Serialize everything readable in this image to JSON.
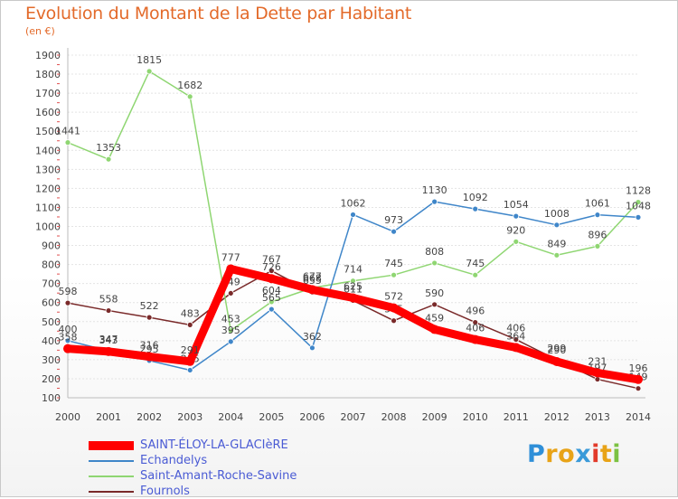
{
  "header": {
    "title": "Evolution du Montant de la Dette par Habitant",
    "subtitle": "(en €)"
  },
  "logo": {
    "letters": [
      "P",
      "r",
      "o",
      "x",
      "i",
      "t",
      "i"
    ],
    "colors": [
      "#2f8fd8",
      "#e8a317",
      "#e8a317",
      "#3a9ad9",
      "#e23a2a",
      "#e8a317",
      "#7cc242"
    ]
  },
  "chart_data": {
    "type": "line",
    "title": "Evolution du Montant de la Dette par Habitant",
    "subtitle": "(en €)",
    "xlabel": "",
    "ylabel": "",
    "x": [
      "2000",
      "2001",
      "2002",
      "2003",
      "2004",
      "2005",
      "2006",
      "2007",
      "2008",
      "2009",
      "2010",
      "2011",
      "2012",
      "2013",
      "2014"
    ],
    "ylim": [
      100,
      1900
    ],
    "yticks": [
      100,
      200,
      300,
      400,
      500,
      600,
      700,
      800,
      900,
      1000,
      1100,
      1200,
      1300,
      1400,
      1500,
      1600,
      1700,
      1800,
      1900
    ],
    "grid": "horizontal",
    "legend": "bottom-left",
    "series": [
      {
        "name": "Fournols",
        "color": "#7a2a2a",
        "values": [
          598,
          558,
          522,
          483,
          649,
          767,
          655,
          611,
          505,
          590,
          496,
          406,
          299,
          197,
          149
        ],
        "labels": [
          "598",
          "558",
          "522",
          "483",
          "649",
          "767",
          "655",
          "611",
          "505",
          "590",
          "496",
          "406",
          "299",
          "197",
          "149"
        ]
      },
      {
        "name": "Saint-Amant-Roche-Savine",
        "color": "#8fd672",
        "values": [
          1441,
          1353,
          1815,
          1682,
          453,
          604,
          677,
          714,
          745,
          808,
          745,
          920,
          849,
          896,
          1128
        ],
        "labels": [
          "1441",
          "1353",
          "1815",
          "1682",
          "453",
          "604",
          "677",
          "714",
          "745",
          "808",
          "745",
          "920",
          "849",
          "896",
          "1128"
        ]
      },
      {
        "name": "Echandelys",
        "color": "#3f86c9",
        "values": [
          400,
          347,
          295,
          245,
          395,
          565,
          362,
          1062,
          973,
          1130,
          1092,
          1054,
          1008,
          1061,
          1048
        ],
        "labels": [
          "400",
          "347",
          "295",
          "245",
          "395",
          "565",
          "362",
          "1062",
          "973",
          "1130",
          "1092",
          "1054",
          "1008",
          "1061",
          "1048"
        ]
      },
      {
        "name": "SAINT-ÉLOY-LA-GLACIèRE",
        "color": "#ff0000",
        "values": [
          358,
          343,
          316,
          291,
          777,
          726,
          668,
          625,
          572,
          459,
          406,
          364,
          290,
          231,
          196
        ],
        "labels": [
          "358",
          "343",
          "316",
          "291",
          "777",
          "726",
          "668",
          "625",
          "572",
          "459",
          "406",
          "364",
          "290",
          "231",
          "196"
        ]
      }
    ],
    "legend_entries": [
      {
        "name": "SAINT-ÉLOY-LA-GLACIèRE",
        "color": "#ff0000"
      },
      {
        "name": "Echandelys",
        "color": "#3f86c9"
      },
      {
        "name": "Saint-Amant-Roche-Savine",
        "color": "#8fd672"
      },
      {
        "name": "Fournols",
        "color": "#7a2a2a"
      }
    ]
  }
}
